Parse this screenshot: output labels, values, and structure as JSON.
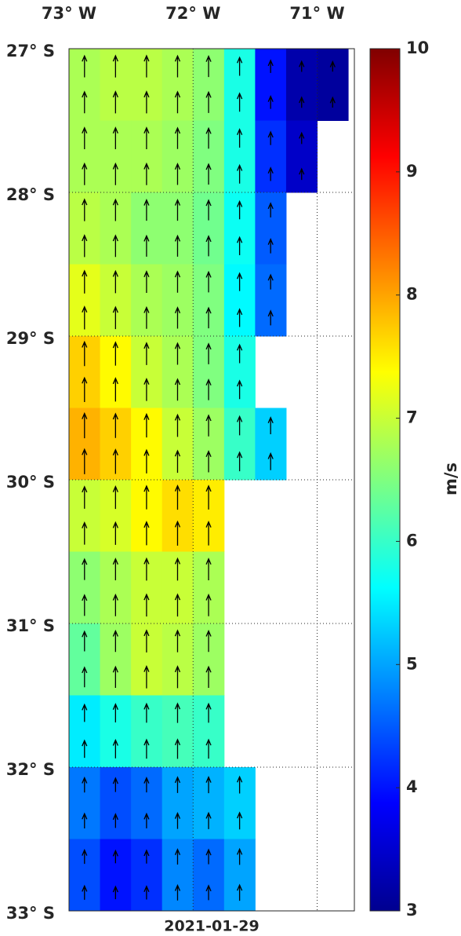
{
  "chart_data": {
    "type": "heatmap",
    "xlabel": "2021-01-29",
    "x": [
      -72.875,
      -72.625,
      -72.375,
      -72.125,
      -71.875,
      -71.625,
      -71.375,
      -71.125,
      -70.875
    ],
    "y": [
      -27.25,
      -27.75,
      -28.25,
      -28.75,
      -29.25,
      -29.75,
      -30.25,
      -30.75,
      -31.25,
      -31.75,
      -32.25,
      -32.75
    ],
    "values": [
      [
        6.8,
        6.9,
        6.9,
        6.8,
        6.6,
        5.8,
        4.0,
        3.3,
        3.2
      ],
      [
        6.8,
        6.8,
        6.8,
        6.7,
        6.5,
        5.8,
        4.2,
        3.5,
        null
      ],
      [
        6.9,
        6.8,
        6.6,
        6.6,
        6.4,
        5.7,
        4.5,
        null,
        null
      ],
      [
        7.2,
        7.0,
        6.8,
        6.7,
        6.5,
        5.6,
        4.6,
        null,
        null
      ],
      [
        7.7,
        7.4,
        7.0,
        6.8,
        6.5,
        5.8,
        null,
        null,
        null
      ],
      [
        7.9,
        7.7,
        7.4,
        7.0,
        6.7,
        6.0,
        5.3,
        null,
        null
      ],
      [
        7.0,
        7.1,
        7.4,
        7.6,
        7.5,
        null,
        null,
        null,
        null
      ],
      [
        6.6,
        6.8,
        7.0,
        7.0,
        6.8,
        null,
        null,
        null,
        null
      ],
      [
        6.3,
        6.7,
        7.0,
        6.9,
        6.7,
        null,
        null,
        null,
        null
      ],
      [
        5.5,
        5.8,
        6.0,
        6.1,
        6.0,
        null,
        null,
        null,
        null
      ],
      [
        4.7,
        4.4,
        4.6,
        5.0,
        5.1,
        5.3,
        null,
        null,
        null
      ],
      [
        4.4,
        4.0,
        4.2,
        4.8,
        4.6,
        5.0,
        null,
        null,
        null
      ]
    ],
    "xlim": [
      -73,
      -70.7
    ],
    "ylim": [
      -33,
      -27
    ],
    "xticks": [
      {
        "value": -73,
        "label": "73° W"
      },
      {
        "value": -72,
        "label": "72° W"
      },
      {
        "value": -71,
        "label": "71° W"
      }
    ],
    "yticks": [
      {
        "value": -27,
        "label": "27° S"
      },
      {
        "value": -28,
        "label": "28° S"
      },
      {
        "value": -29,
        "label": "29° S"
      },
      {
        "value": -30,
        "label": "30° S"
      },
      {
        "value": -31,
        "label": "31° S"
      },
      {
        "value": -32,
        "label": "32° S"
      },
      {
        "value": -33,
        "label": "33° S"
      }
    ],
    "grid": true,
    "colorbar": {
      "lim": [
        3,
        10
      ],
      "ticks": [
        3,
        4,
        5,
        6,
        7,
        8,
        9,
        10
      ],
      "label": "m/s",
      "colormap": "jet"
    }
  }
}
